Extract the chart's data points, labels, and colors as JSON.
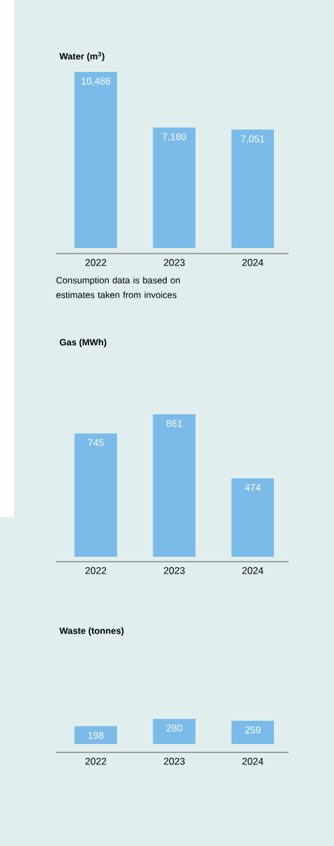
{
  "chart_data": [
    {
      "type": "bar",
      "title": "Water (m$^{3}$)",
      "categories": [
        "2022",
        "2023",
        "2024"
      ],
      "values": [
        10486,
        7180,
        7051
      ],
      "value_labels": [
        "10,486",
        "7,180",
        "7,051"
      ],
      "color": "#7bbbe9",
      "annotations": [
        "Consumption data is based on estimates taken from invoices"
      ]
    },
    {
      "type": "bar",
      "title": "Gas (MWh)",
      "categories": [
        "2022",
        "2023",
        "2024"
      ],
      "values": [
        745,
        861,
        474
      ],
      "value_labels": [
        "745",
        "861",
        "474"
      ],
      "color": "#7bbbe9"
    },
    {
      "type": "bar",
      "title": "Waste (tonnes)",
      "categories": [
        "2022",
        "2023",
        "2024"
      ],
      "values": [
        198,
        280,
        259
      ],
      "value_labels": [
        "198",
        "280",
        "259"
      ],
      "color": "#7bbbe9"
    }
  ]
}
